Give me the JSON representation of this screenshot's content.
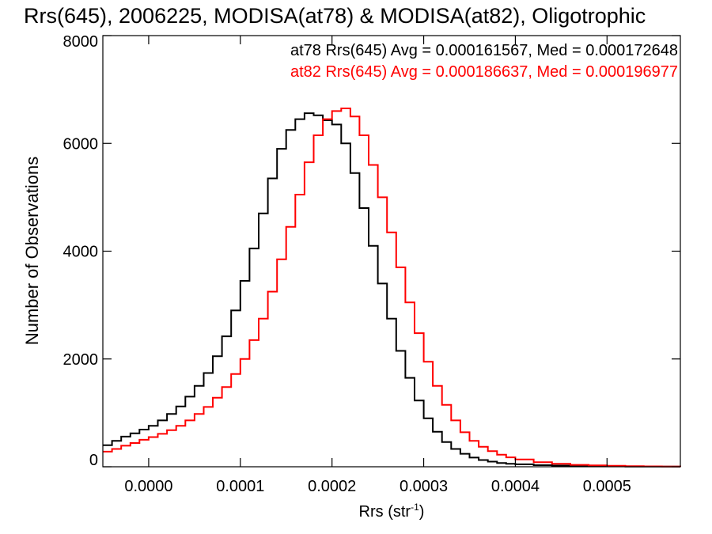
{
  "chart_data": {
    "type": "line",
    "title": "Rrs(645), 2006225, MODISA(at78) & MODISA(at82), Oligotrophic",
    "xlabel_main": "Rrs (str",
    "xlabel_sup": "-1",
    "xlabel_close": ")",
    "ylabel": "Number of Observations",
    "xlim": [
      -5e-05,
      0.00058
    ],
    "ylim": [
      0,
      8000
    ],
    "xticks": [
      0.0,
      0.0001,
      0.0002,
      0.0003,
      0.0004,
      0.0005
    ],
    "xtick_labels": [
      "0.0000",
      "0.0001",
      "0.0002",
      "0.0003",
      "0.0004",
      "0.0005"
    ],
    "yticks": [
      0,
      2000,
      4000,
      6000,
      8000
    ],
    "ytick_labels": [
      "0",
      "2000",
      "4000",
      "6000",
      "8000"
    ],
    "colors": {
      "at78": "#000000",
      "at82": "#ff0000",
      "axis": "#000000"
    },
    "legend": {
      "placement": "top-right",
      "entries": [
        {
          "text": "at78 Rrs(645) Avg = 0.000161567, Med = 0.000172648",
          "color": "#000000"
        },
        {
          "text": "at82 Rrs(645) Avg = 0.000186637, Med = 0.000196977",
          "color": "#ff0000"
        }
      ]
    },
    "series": [
      {
        "key": "at78",
        "style": "step",
        "points": [
          [
            -5e-05,
            400
          ],
          [
            -4e-05,
            480
          ],
          [
            -3e-05,
            560
          ],
          [
            -2e-05,
            620
          ],
          [
            -1e-05,
            690
          ],
          [
            0.0,
            760
          ],
          [
            1e-05,
            860
          ],
          [
            2e-05,
            980
          ],
          [
            3e-05,
            1120
          ],
          [
            4e-05,
            1300
          ],
          [
            5e-05,
            1500
          ],
          [
            6e-05,
            1740
          ],
          [
            7e-05,
            2050
          ],
          [
            8e-05,
            2420
          ],
          [
            9e-05,
            2900
          ],
          [
            0.0001,
            3450
          ],
          [
            0.00011,
            4050
          ],
          [
            0.00012,
            4700
          ],
          [
            0.00013,
            5350
          ],
          [
            0.00014,
            5900
          ],
          [
            0.00015,
            6250
          ],
          [
            0.00016,
            6450
          ],
          [
            0.00017,
            6560
          ],
          [
            0.00018,
            6520
          ],
          [
            0.00019,
            6430
          ],
          [
            0.0002,
            6350
          ],
          [
            0.00021,
            6000
          ],
          [
            0.00022,
            5450
          ],
          [
            0.00023,
            4800
          ],
          [
            0.00024,
            4100
          ],
          [
            0.00025,
            3400
          ],
          [
            0.00026,
            2750
          ],
          [
            0.00027,
            2150
          ],
          [
            0.00028,
            1650
          ],
          [
            0.00029,
            1230
          ],
          [
            0.0003,
            900
          ],
          [
            0.00031,
            650
          ],
          [
            0.00032,
            460
          ],
          [
            0.00033,
            330
          ],
          [
            0.00034,
            240
          ],
          [
            0.00035,
            170
          ],
          [
            0.00036,
            125
          ],
          [
            0.00037,
            95
          ],
          [
            0.00038,
            70
          ],
          [
            0.00039,
            55
          ],
          [
            0.0004,
            45
          ],
          [
            0.00042,
            30
          ],
          [
            0.00044,
            22
          ],
          [
            0.00046,
            15
          ],
          [
            0.00048,
            10
          ],
          [
            0.0005,
            8
          ],
          [
            0.00052,
            5
          ],
          [
            0.00054,
            4
          ],
          [
            0.00056,
            3
          ],
          [
            0.00058,
            2
          ]
        ]
      },
      {
        "key": "at82",
        "style": "step",
        "points": [
          [
            -5e-05,
            280
          ],
          [
            -4e-05,
            330
          ],
          [
            -3e-05,
            390
          ],
          [
            -2e-05,
            440
          ],
          [
            -1e-05,
            500
          ],
          [
            0.0,
            550
          ],
          [
            1e-05,
            610
          ],
          [
            2e-05,
            680
          ],
          [
            3e-05,
            760
          ],
          [
            4e-05,
            860
          ],
          [
            5e-05,
            980
          ],
          [
            6e-05,
            1110
          ],
          [
            7e-05,
            1280
          ],
          [
            8e-05,
            1480
          ],
          [
            9e-05,
            1720
          ],
          [
            0.0001,
            2000
          ],
          [
            0.00011,
            2350
          ],
          [
            0.00012,
            2750
          ],
          [
            0.00013,
            3250
          ],
          [
            0.00014,
            3850
          ],
          [
            0.00015,
            4450
          ],
          [
            0.00016,
            5050
          ],
          [
            0.00017,
            5650
          ],
          [
            0.00018,
            6150
          ],
          [
            0.00019,
            6450
          ],
          [
            0.0002,
            6600
          ],
          [
            0.00021,
            6650
          ],
          [
            0.00022,
            6500
          ],
          [
            0.00023,
            6150
          ],
          [
            0.00024,
            5600
          ],
          [
            0.00025,
            5000
          ],
          [
            0.00026,
            4350
          ],
          [
            0.00027,
            3700
          ],
          [
            0.00028,
            3050
          ],
          [
            0.00029,
            2480
          ],
          [
            0.0003,
            1950
          ],
          [
            0.00031,
            1500
          ],
          [
            0.00032,
            1150
          ],
          [
            0.00033,
            860
          ],
          [
            0.00034,
            640
          ],
          [
            0.00035,
            480
          ],
          [
            0.00036,
            370
          ],
          [
            0.00037,
            290
          ],
          [
            0.00038,
            225
          ],
          [
            0.00039,
            175
          ],
          [
            0.0004,
            135
          ],
          [
            0.00042,
            85
          ],
          [
            0.00044,
            55
          ],
          [
            0.00046,
            35
          ],
          [
            0.00048,
            25
          ],
          [
            0.0005,
            18
          ],
          [
            0.00052,
            12
          ],
          [
            0.00054,
            8
          ],
          [
            0.00056,
            5
          ],
          [
            0.00058,
            3
          ]
        ]
      }
    ]
  }
}
